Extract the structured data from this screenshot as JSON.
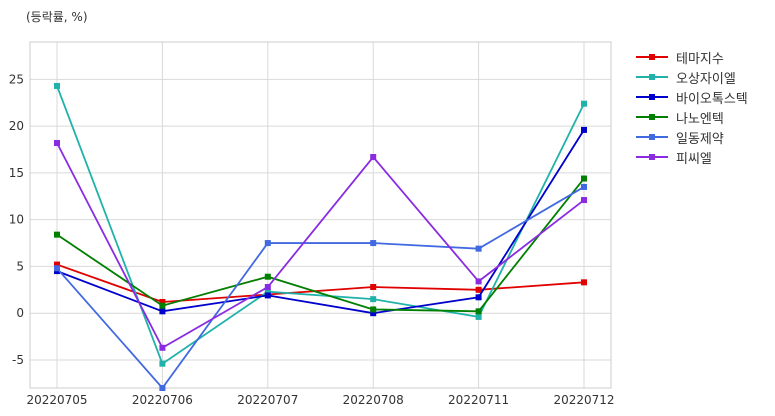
{
  "unit_label": "(등락률, %)",
  "chart_data": {
    "type": "line",
    "categories": [
      "20220705",
      "20220706",
      "20220707",
      "20220708",
      "20220711",
      "20220712"
    ],
    "ylim": [
      -8,
      29
    ],
    "yticks": [
      -5,
      0,
      5,
      10,
      15,
      20,
      25
    ],
    "grid": true,
    "legend_position": "right",
    "series": [
      {
        "name": "테마지수",
        "color": "#e00000",
        "values": [
          5.2,
          1.2,
          2.0,
          2.8,
          2.5,
          3.3
        ]
      },
      {
        "name": "오상자이엘",
        "color": "#20b2aa",
        "values": [
          24.3,
          -5.4,
          2.3,
          1.5,
          -0.4,
          22.4
        ]
      },
      {
        "name": "바이오톡스텍",
        "color": "#0000cc",
        "values": [
          4.5,
          0.2,
          1.9,
          0.0,
          1.7,
          19.6
        ]
      },
      {
        "name": "나노엔텍",
        "color": "#007f00",
        "values": [
          8.4,
          0.8,
          3.9,
          0.4,
          0.2,
          14.4
        ]
      },
      {
        "name": "일동제약",
        "color": "#4169e1",
        "values": [
          4.8,
          -8.0,
          7.5,
          7.5,
          6.9,
          13.5
        ]
      },
      {
        "name": "피씨엘",
        "color": "#8a2be2",
        "values": [
          18.2,
          -3.7,
          2.8,
          16.7,
          3.4,
          12.1
        ]
      }
    ]
  }
}
